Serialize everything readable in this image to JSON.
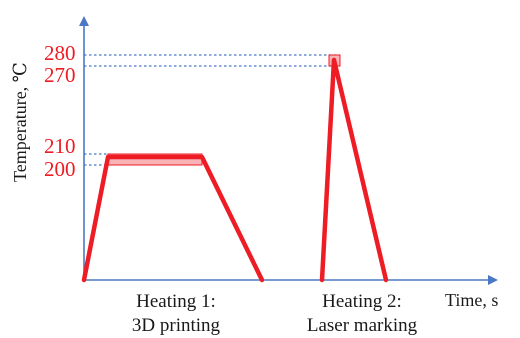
{
  "y_axis": {
    "title": "Temperature, ℃"
  },
  "x_axis": {
    "title": "Time, s"
  },
  "temperature_levels": {
    "t200": "200",
    "t210": "210",
    "t270": "270",
    "t280": "280"
  },
  "phases": [
    {
      "line1": "Heating 1:",
      "line2": "3D printing"
    },
    {
      "line1": "Heating 2:",
      "line2": "Laser marking"
    }
  ],
  "colors": {
    "profile": "#ee1c24",
    "band_fill": "#f7b3b5",
    "guide": "#4a78c4",
    "axis": "#4a78c4",
    "tick_text": "#ee1c24"
  }
}
